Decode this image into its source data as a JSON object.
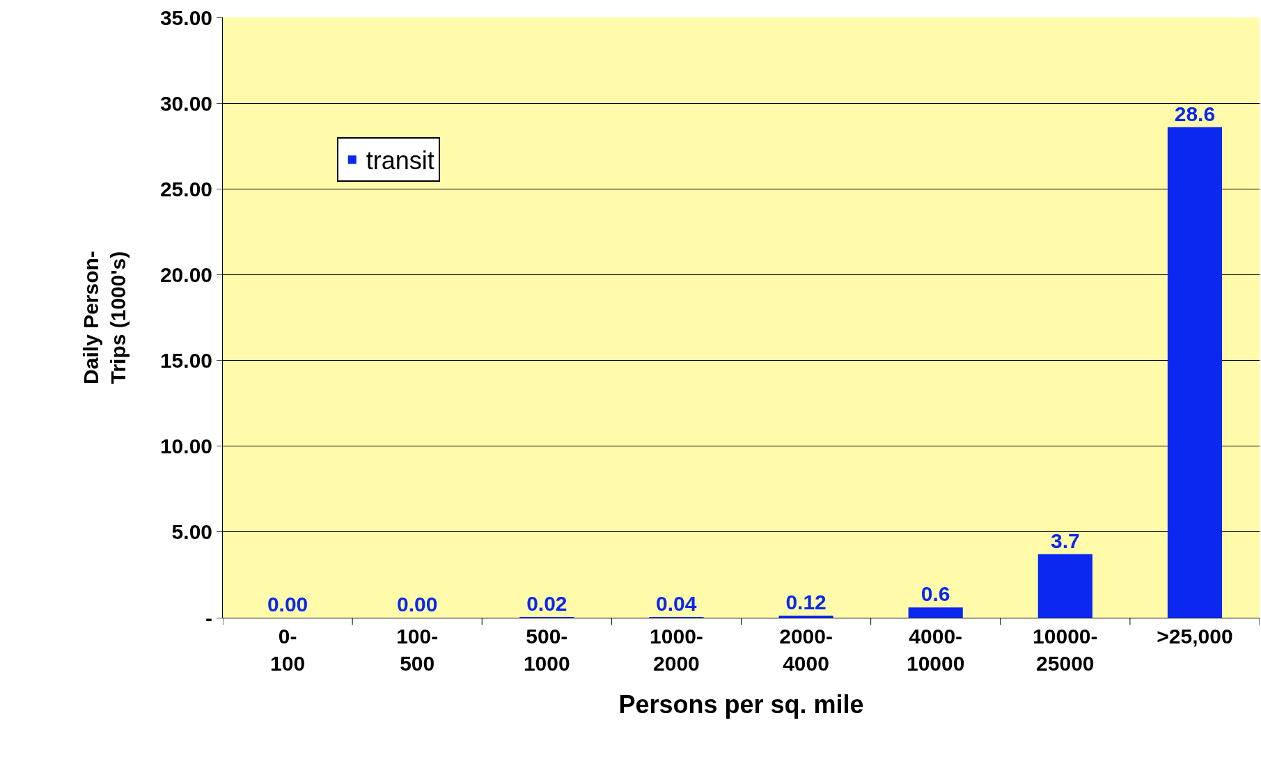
{
  "chart_data": {
    "type": "bar",
    "xlabel": "Persons per sq. mile",
    "ylabel": "Daily Person-Trips (1000's)",
    "categories": [
      "0-100",
      "100-500",
      "500-1000",
      "1000-2000",
      "2000-4000",
      "4000-10000",
      "10000-25000",
      ">25,000"
    ],
    "series": [
      {
        "name": "transit",
        "color": "#0a28f0",
        "values": [
          0,
          0,
          0.02,
          0.04,
          0.12,
          0.6,
          3.7,
          28.6
        ],
        "value_labels": [
          "0.00",
          "0.00",
          "0.02",
          "0.04",
          "0.12",
          "0.6",
          "3.7",
          "28.6"
        ]
      }
    ],
    "ylim": [
      0,
      35
    ],
    "yticks": [
      {
        "value": 0,
        "label": "-"
      },
      {
        "value": 5,
        "label": "5.00"
      },
      {
        "value": 10,
        "label": "10.00"
      },
      {
        "value": 15,
        "label": "15.00"
      },
      {
        "value": 20,
        "label": "20.00"
      },
      {
        "value": 25,
        "label": "25.00"
      },
      {
        "value": 30,
        "label": "30.00"
      },
      {
        "value": 35,
        "label": "35.00"
      }
    ],
    "grid": "y",
    "legend": "top left"
  }
}
